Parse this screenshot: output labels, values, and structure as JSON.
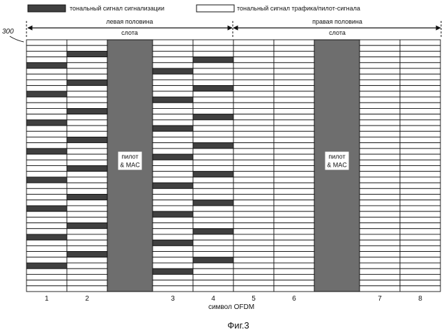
{
  "legend": {
    "signaling_label": "тональный сигнал сигнализации",
    "traffic_label": "тональный сигнал трафика/пилот-сигнала",
    "signaling_color": "#404040",
    "traffic_color": "#ffffff"
  },
  "reference_number": "300",
  "halves": {
    "left": [
      "левая половина",
      "слота"
    ],
    "right": [
      "правая половина",
      "слота"
    ]
  },
  "pilot_label": [
    "пилот",
    "& MAC"
  ],
  "pilot_color": "#6e6e6e",
  "x_axis_label": "символ OFDM",
  "figure_caption": "Фиг.3",
  "tone_rows": 44,
  "symbols": [
    {
      "kind": "data",
      "label": "1",
      "signaling_rows": [
        4,
        9,
        14,
        19,
        24,
        29,
        34,
        39
      ]
    },
    {
      "kind": "data",
      "label": "2",
      "signaling_rows": [
        2,
        7,
        12,
        17,
        22,
        27,
        32,
        37
      ]
    },
    {
      "kind": "pilot"
    },
    {
      "kind": "data",
      "label": "3",
      "signaling_rows": [
        5,
        10,
        15,
        20,
        25,
        30,
        35,
        40
      ]
    },
    {
      "kind": "data",
      "label": "4",
      "signaling_rows": [
        3,
        8,
        13,
        18,
        23,
        28,
        33,
        38
      ]
    },
    {
      "kind": "data",
      "label": "5",
      "signaling_rows": []
    },
    {
      "kind": "data",
      "label": "6",
      "signaling_rows": []
    },
    {
      "kind": "pilot"
    },
    {
      "kind": "data",
      "label": "7",
      "signaling_rows": []
    },
    {
      "kind": "data",
      "label": "8",
      "signaling_rows": []
    }
  ]
}
